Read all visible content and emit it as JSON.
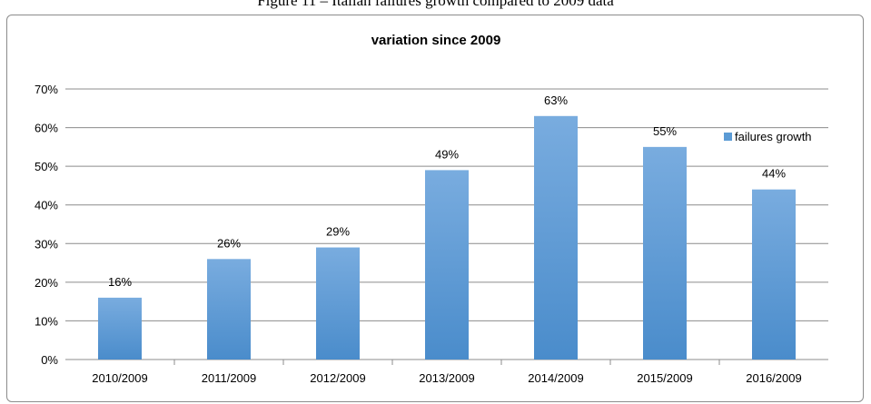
{
  "caption": "Figure 11 – Italian failures growth compared to 2009 data",
  "chart_data": {
    "type": "bar",
    "title": "variation since 2009",
    "categories": [
      "2010/2009",
      "2011/2009",
      "2012/2009",
      "2013/2009",
      "2014/2009",
      "2015/2009",
      "2016/2009"
    ],
    "series": [
      {
        "name": "failures growth",
        "values": [
          16,
          26,
          29,
          49,
          63,
          55,
          44
        ],
        "color": "#5b9bd5"
      }
    ],
    "data_labels": [
      "16%",
      "26%",
      "29%",
      "49%",
      "63%",
      "55%",
      "44%"
    ],
    "y_ticks": [
      "0%",
      "10%",
      "20%",
      "30%",
      "40%",
      "50%",
      "60%",
      "70%"
    ],
    "ylim": [
      0,
      70
    ],
    "grid": true,
    "legend_position": "top-right"
  }
}
